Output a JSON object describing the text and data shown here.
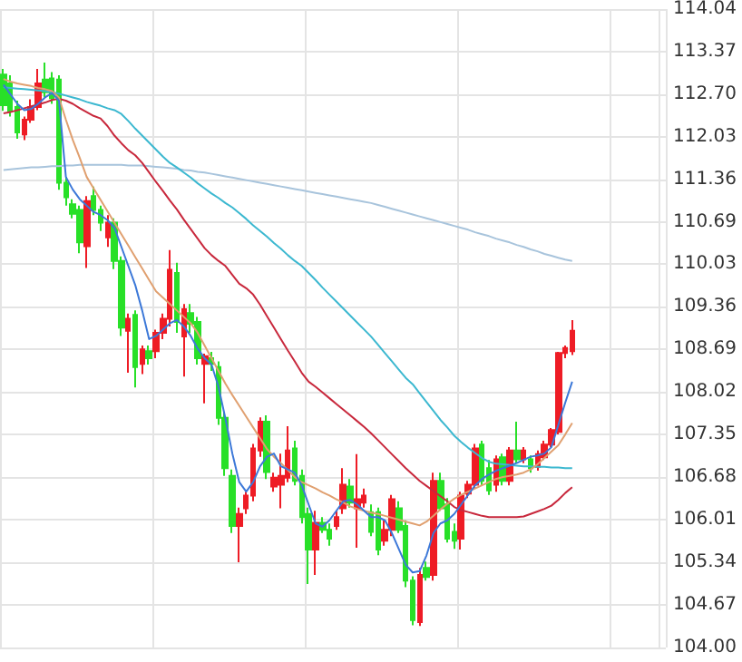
{
  "chart_data": {
    "type": "candlestick",
    "categories": [
      null,
      null,
      null,
      null,
      null,
      null,
      null,
      null,
      null,
      null,
      null,
      null,
      null,
      null,
      null,
      null,
      null,
      null,
      null,
      null,
      null,
      null,
      null,
      null,
      null,
      null,
      null,
      null,
      null,
      null,
      null,
      null,
      null,
      null,
      null,
      null,
      null,
      null,
      null,
      null,
      null,
      null,
      null,
      null,
      null,
      null,
      null,
      null,
      null,
      null,
      null,
      null,
      null,
      null,
      null,
      null,
      null,
      null,
      null,
      null,
      null,
      null,
      null,
      null,
      null,
      null,
      null,
      null,
      null,
      null,
      null,
      null,
      null,
      null,
      null,
      null,
      null,
      null,
      null,
      null,
      null,
      null,
      null
    ],
    "ohlc": [
      [
        113.01,
        113.1,
        112.44,
        112.53
      ],
      [
        112.87,
        113.0,
        112.35,
        112.44
      ],
      [
        112.5,
        112.6,
        112.0,
        112.1
      ],
      [
        112.07,
        112.35,
        111.98,
        112.3
      ],
      [
        112.3,
        112.62,
        112.25,
        112.5
      ],
      [
        112.5,
        113.1,
        112.45,
        112.87
      ],
      [
        112.93,
        113.2,
        112.65,
        112.73
      ],
      [
        112.95,
        113.05,
        112.55,
        112.64
      ],
      [
        112.93,
        113.0,
        111.2,
        111.31
      ],
      [
        111.31,
        111.4,
        110.95,
        111.08
      ],
      [
        110.97,
        111.05,
        110.75,
        110.82
      ],
      [
        110.88,
        110.95,
        110.2,
        110.37
      ],
      [
        110.31,
        111.1,
        109.97,
        111.02
      ],
      [
        111.1,
        111.25,
        110.8,
        110.88
      ],
      [
        110.88,
        110.95,
        110.55,
        110.68
      ],
      [
        110.45,
        110.8,
        110.3,
        110.68
      ],
      [
        110.68,
        110.75,
        109.95,
        110.08
      ],
      [
        110.08,
        110.15,
        108.9,
        109.03
      ],
      [
        108.98,
        109.25,
        108.32,
        109.17
      ],
      [
        109.23,
        109.3,
        108.09,
        108.41
      ],
      [
        108.46,
        108.75,
        108.3,
        108.69
      ],
      [
        108.66,
        108.75,
        108.45,
        108.55
      ],
      [
        108.66,
        109.0,
        108.55,
        108.95
      ],
      [
        108.95,
        109.25,
        108.85,
        109.17
      ],
      [
        109.17,
        110.25,
        109.05,
        109.94
      ],
      [
        109.89,
        110.05,
        108.95,
        109.12
      ],
      [
        108.89,
        109.4,
        108.26,
        109.32
      ],
      [
        109.26,
        109.4,
        108.95,
        109.09
      ],
      [
        109.12,
        109.2,
        108.45,
        108.55
      ],
      [
        108.46,
        108.62,
        107.84,
        108.58
      ],
      [
        108.55,
        108.65,
        108.35,
        108.46
      ],
      [
        108.41,
        108.5,
        107.5,
        107.61
      ],
      [
        107.61,
        107.7,
        106.7,
        106.82
      ],
      [
        106.7,
        106.8,
        105.8,
        105.91
      ],
      [
        105.91,
        106.2,
        105.34,
        106.1
      ],
      [
        106.19,
        106.45,
        106.1,
        106.39
      ],
      [
        106.39,
        107.2,
        106.3,
        107.13
      ],
      [
        107.1,
        107.62,
        107.0,
        107.55
      ],
      [
        107.55,
        107.65,
        106.65,
        106.76
      ],
      [
        106.53,
        106.75,
        106.45,
        106.67
      ],
      [
        106.56,
        107.05,
        106.19,
        106.7
      ],
      [
        106.67,
        107.48,
        106.6,
        107.1
      ],
      [
        107.13,
        107.25,
        106.55,
        106.62
      ],
      [
        106.7,
        106.8,
        105.95,
        106.05
      ],
      [
        106.1,
        106.2,
        105.0,
        105.54
      ],
      [
        105.54,
        106.15,
        105.14,
        105.96
      ],
      [
        105.96,
        106.05,
        105.8,
        105.85
      ],
      [
        105.85,
        105.95,
        105.6,
        105.71
      ],
      [
        105.91,
        106.15,
        105.85,
        106.05
      ],
      [
        106.19,
        106.82,
        106.1,
        106.56
      ],
      [
        106.53,
        106.65,
        106.2,
        106.28
      ],
      [
        106.19,
        107.04,
        105.57,
        106.33
      ],
      [
        106.28,
        106.5,
        106.2,
        106.39
      ],
      [
        106.13,
        106.25,
        105.75,
        105.82
      ],
      [
        106.13,
        106.2,
        105.45,
        105.54
      ],
      [
        105.68,
        106.0,
        105.6,
        105.85
      ],
      [
        105.85,
        106.4,
        105.75,
        106.33
      ],
      [
        106.19,
        106.3,
        105.8,
        105.85
      ],
      [
        105.91,
        106.0,
        104.95,
        105.05
      ],
      [
        105.05,
        105.12,
        104.35,
        104.43
      ],
      [
        104.4,
        105.25,
        104.34,
        105.14
      ],
      [
        105.25,
        105.35,
        105.05,
        105.11
      ],
      [
        105.14,
        106.75,
        105.05,
        106.62
      ],
      [
        106.62,
        106.75,
        106.15,
        106.19
      ],
      [
        106.25,
        106.35,
        105.65,
        105.71
      ],
      [
        105.82,
        105.95,
        105.55,
        105.68
      ],
      [
        105.71,
        106.45,
        105.54,
        106.39
      ],
      [
        106.42,
        106.62,
        106.35,
        106.56
      ],
      [
        106.56,
        107.2,
        106.5,
        107.13
      ],
      [
        107.19,
        107.25,
        106.55,
        106.62
      ],
      [
        106.82,
        106.95,
        106.4,
        106.47
      ],
      [
        106.56,
        107.02,
        106.45,
        106.96
      ],
      [
        106.99,
        107.05,
        106.55,
        106.62
      ],
      [
        106.62,
        107.15,
        106.55,
        107.1
      ],
      [
        107.1,
        107.55,
        106.9,
        106.96
      ],
      [
        106.96,
        107.15,
        106.9,
        107.1
      ],
      [
        106.96,
        107.02,
        106.75,
        106.82
      ],
      [
        106.84,
        107.1,
        106.78,
        107.04
      ],
      [
        106.99,
        107.25,
        106.95,
        107.19
      ],
      [
        107.19,
        107.45,
        107.15,
        107.42
      ],
      [
        107.39,
        108.65,
        107.35,
        108.63
      ],
      [
        108.63,
        108.75,
        108.55,
        108.71
      ],
      [
        108.66,
        109.15,
        108.6,
        108.98
      ]
    ],
    "series": [
      {
        "type": "line",
        "color": "#a8c4dc",
        "values": [
          111.51,
          111.52,
          111.53,
          111.54,
          111.55,
          111.55,
          111.56,
          111.57,
          111.57,
          111.58,
          111.58,
          111.59,
          111.59,
          111.59,
          111.59,
          111.59,
          111.59,
          111.59,
          111.58,
          111.58,
          111.58,
          111.57,
          111.56,
          111.55,
          111.54,
          111.53,
          111.51,
          111.5,
          111.48,
          111.47,
          111.45,
          111.43,
          111.41,
          111.39,
          111.37,
          111.35,
          111.33,
          111.31,
          111.29,
          111.27,
          111.25,
          111.23,
          111.21,
          111.19,
          111.17,
          111.15,
          111.13,
          111.11,
          111.09,
          111.07,
          111.05,
          111.03,
          111.01,
          110.99,
          110.96,
          110.93,
          110.9,
          110.87,
          110.84,
          110.81,
          110.78,
          110.75,
          110.72,
          110.69,
          110.66,
          110.63,
          110.6,
          110.57,
          110.53,
          110.5,
          110.47,
          110.43,
          110.4,
          110.37,
          110.33,
          110.3,
          110.26,
          110.23,
          110.19,
          110.16,
          110.13,
          110.1,
          110.08
        ]
      },
      {
        "type": "line",
        "color": "#3cb8d0",
        "values": [
          112.81,
          112.8,
          112.79,
          112.78,
          112.77,
          112.76,
          112.75,
          112.73,
          112.71,
          112.68,
          112.65,
          112.62,
          112.58,
          112.55,
          112.52,
          112.48,
          112.45,
          112.39,
          112.28,
          112.16,
          112.05,
          111.94,
          111.83,
          111.72,
          111.62,
          111.55,
          111.47,
          111.39,
          111.3,
          111.22,
          111.14,
          111.07,
          110.99,
          110.92,
          110.83,
          110.74,
          110.64,
          110.55,
          110.46,
          110.36,
          110.27,
          110.17,
          110.08,
          110.0,
          109.89,
          109.78,
          109.66,
          109.55,
          109.44,
          109.33,
          109.22,
          109.11,
          109.0,
          108.89,
          108.76,
          108.63,
          108.5,
          108.37,
          108.24,
          108.14,
          108.0,
          107.86,
          107.72,
          107.58,
          107.46,
          107.33,
          107.23,
          107.14,
          107.06,
          106.98,
          106.92,
          106.89,
          106.88,
          106.87,
          106.86,
          106.85,
          106.85,
          106.84,
          106.84,
          106.83,
          106.83,
          106.82,
          106.82
        ]
      },
      {
        "type": "line",
        "color": "#c8283c",
        "values": [
          112.4,
          112.42,
          112.45,
          112.48,
          112.51,
          112.54,
          112.57,
          112.61,
          112.63,
          112.6,
          112.55,
          112.48,
          112.42,
          112.36,
          112.32,
          112.2,
          112.05,
          111.93,
          111.82,
          111.74,
          111.62,
          111.47,
          111.32,
          111.18,
          111.03,
          110.89,
          110.73,
          110.58,
          110.43,
          110.28,
          110.17,
          110.08,
          110.0,
          109.86,
          109.72,
          109.65,
          109.55,
          109.39,
          109.21,
          109.03,
          108.85,
          108.67,
          108.5,
          108.32,
          108.18,
          108.1,
          108.01,
          107.92,
          107.83,
          107.74,
          107.65,
          107.56,
          107.47,
          107.37,
          107.26,
          107.15,
          107.04,
          106.93,
          106.82,
          106.72,
          106.62,
          106.54,
          106.46,
          106.38,
          106.3,
          106.21,
          106.16,
          106.13,
          106.1,
          106.07,
          106.05,
          106.05,
          106.05,
          106.05,
          106.05,
          106.06,
          106.1,
          106.14,
          106.18,
          106.23,
          106.32,
          106.43,
          106.52
        ]
      },
      {
        "type": "line",
        "color": "#e0a070",
        "values": [
          112.94,
          112.9,
          112.87,
          112.85,
          112.83,
          112.8,
          112.78,
          112.75,
          112.65,
          112.3,
          111.98,
          111.7,
          111.4,
          111.22,
          111.04,
          110.86,
          110.68,
          110.5,
          110.32,
          110.14,
          109.96,
          109.78,
          109.6,
          109.5,
          109.4,
          109.3,
          109.2,
          109.1,
          108.95,
          108.75,
          108.55,
          108.35,
          108.15,
          107.97,
          107.8,
          107.63,
          107.46,
          107.29,
          107.12,
          107.0,
          106.9,
          106.79,
          106.68,
          106.6,
          106.55,
          106.5,
          106.44,
          106.39,
          106.33,
          106.28,
          106.22,
          106.18,
          106.15,
          106.12,
          106.1,
          106.07,
          106.04,
          106.01,
          105.98,
          105.95,
          105.92,
          105.98,
          106.07,
          106.17,
          106.26,
          106.34,
          106.4,
          106.45,
          106.5,
          106.55,
          106.6,
          106.65,
          106.68,
          106.7,
          106.72,
          106.75,
          106.8,
          106.88,
          106.98,
          107.08,
          107.18,
          107.35,
          107.53
        ]
      },
      {
        "type": "line",
        "color": "#3c78d8",
        "values": [
          112.85,
          112.7,
          112.55,
          112.45,
          112.47,
          112.55,
          112.65,
          112.72,
          112.6,
          111.4,
          111.2,
          111.05,
          110.95,
          110.85,
          110.8,
          110.72,
          110.6,
          110.3,
          110.0,
          109.7,
          109.3,
          108.85,
          108.9,
          109.0,
          109.1,
          109.15,
          109.05,
          108.9,
          108.7,
          108.55,
          108.45,
          108.1,
          107.6,
          107.05,
          106.6,
          106.45,
          106.6,
          106.85,
          107.0,
          107.05,
          106.85,
          106.8,
          106.75,
          106.55,
          106.25,
          105.95,
          105.9,
          106.0,
          106.15,
          106.3,
          106.32,
          106.25,
          106.15,
          106.05,
          106.05,
          106.0,
          105.8,
          105.55,
          105.3,
          105.18,
          105.2,
          105.45,
          105.8,
          105.95,
          106.0,
          106.1,
          106.25,
          106.4,
          106.55,
          106.65,
          106.72,
          106.78,
          106.82,
          106.86,
          106.9,
          106.95,
          107.0,
          107.02,
          107.05,
          107.15,
          107.5,
          107.85,
          108.18
        ]
      }
    ],
    "ylim": [
      104.0,
      114.04
    ],
    "yticks": [
      {
        "value": 104,
        "label": "104.00"
      },
      104.67,
      105.34,
      106.01,
      106.68,
      107.35,
      108.02,
      108.69,
      109.36,
      110.03,
      110.69,
      111.36,
      112.03,
      {
        "value": 112.7,
        "label": "112.70"
      },
      113.37,
      114.04
    ],
    "grid": true,
    "line_style": "solid",
    "tick_labels": "y"
  }
}
